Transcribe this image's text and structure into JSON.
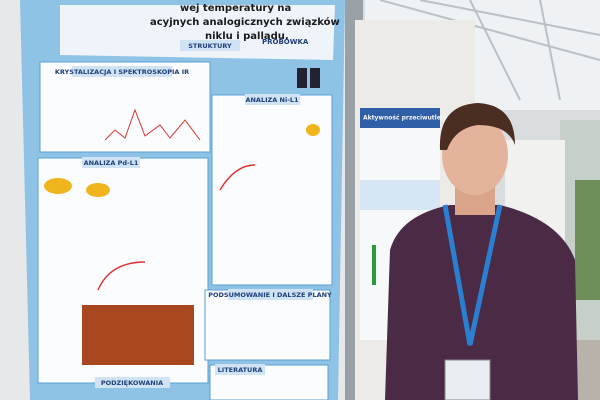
{
  "poster": {
    "title_lines": [
      "wej temperatury na",
      "acyjnych analogicznych związków",
      "niklu i palladu."
    ],
    "logo": "PROBÓWKA",
    "sections": [
      "STRUKTURY",
      "KRYSTALIZACJA I SPEKTROSKOPIA IR",
      "ANALIZA Ni-L1",
      "ANALIZA Pd-L1",
      "PODSUMOWANIE I DALSZE PLANY",
      "LITERATURA",
      "PODZIĘKOWANIA"
    ]
  },
  "second_poster": {
    "title": "Aktywność przeciwutleniająca"
  }
}
